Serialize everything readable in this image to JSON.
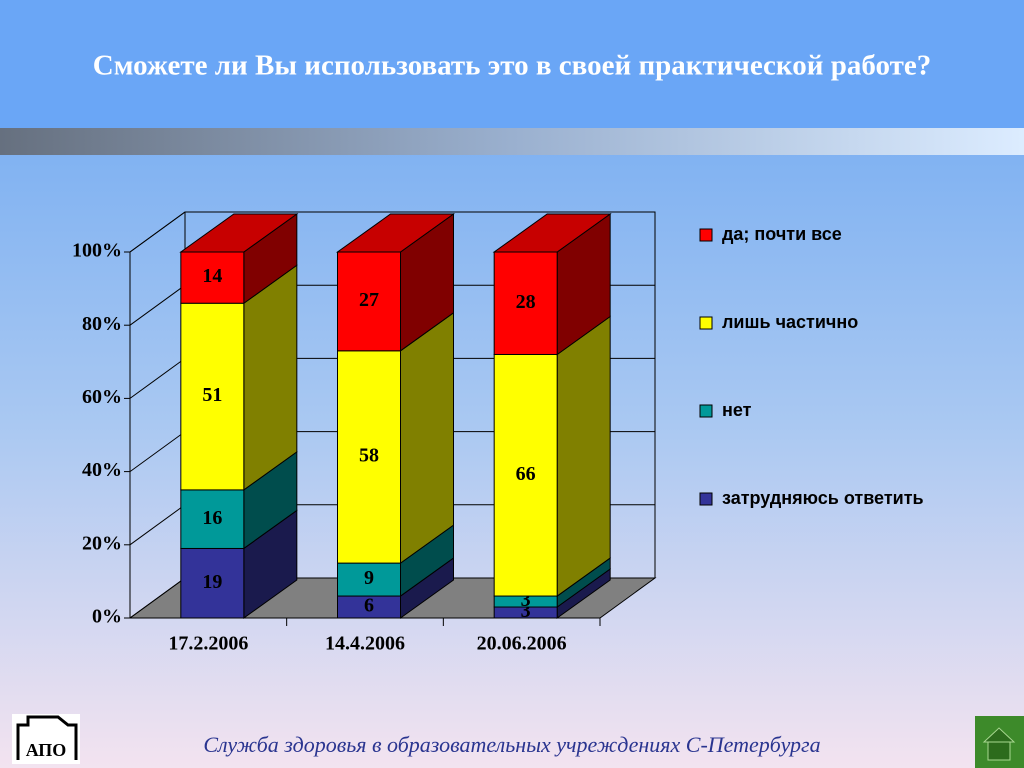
{
  "chart_data": {
    "type": "bar3d_stacked",
    "title": "Сможете ли Вы использовать это в своей практической работе?",
    "footer": "Служба здоровья в образовательных учреждениях С-Петербурга",
    "categories": [
      "17.2.2006",
      "14.4.2006",
      "20.06.2006"
    ],
    "series": [
      {
        "name": "затрудняюсь ответить",
        "color": "#333399",
        "values": [
          19,
          6,
          3
        ]
      },
      {
        "name": "нет",
        "color": "#009999",
        "values": [
          16,
          9,
          3
        ]
      },
      {
        "name": "лишь частично",
        "color": "#ffff00",
        "values": [
          51,
          58,
          66
        ]
      },
      {
        "name": "да; почти все",
        "color": "#ff0000",
        "values": [
          14,
          27,
          28
        ]
      }
    ],
    "ylim": [
      0,
      100
    ],
    "yticks": [
      {
        "value": 0,
        "label": "0%"
      },
      {
        "value": 20,
        "label": "20%"
      },
      {
        "value": 40,
        "label": "40%"
      },
      {
        "value": 60,
        "label": "60%"
      },
      {
        "value": 80,
        "label": "80%"
      },
      {
        "value": 100,
        "label": "100%"
      }
    ],
    "grid": true
  }
}
